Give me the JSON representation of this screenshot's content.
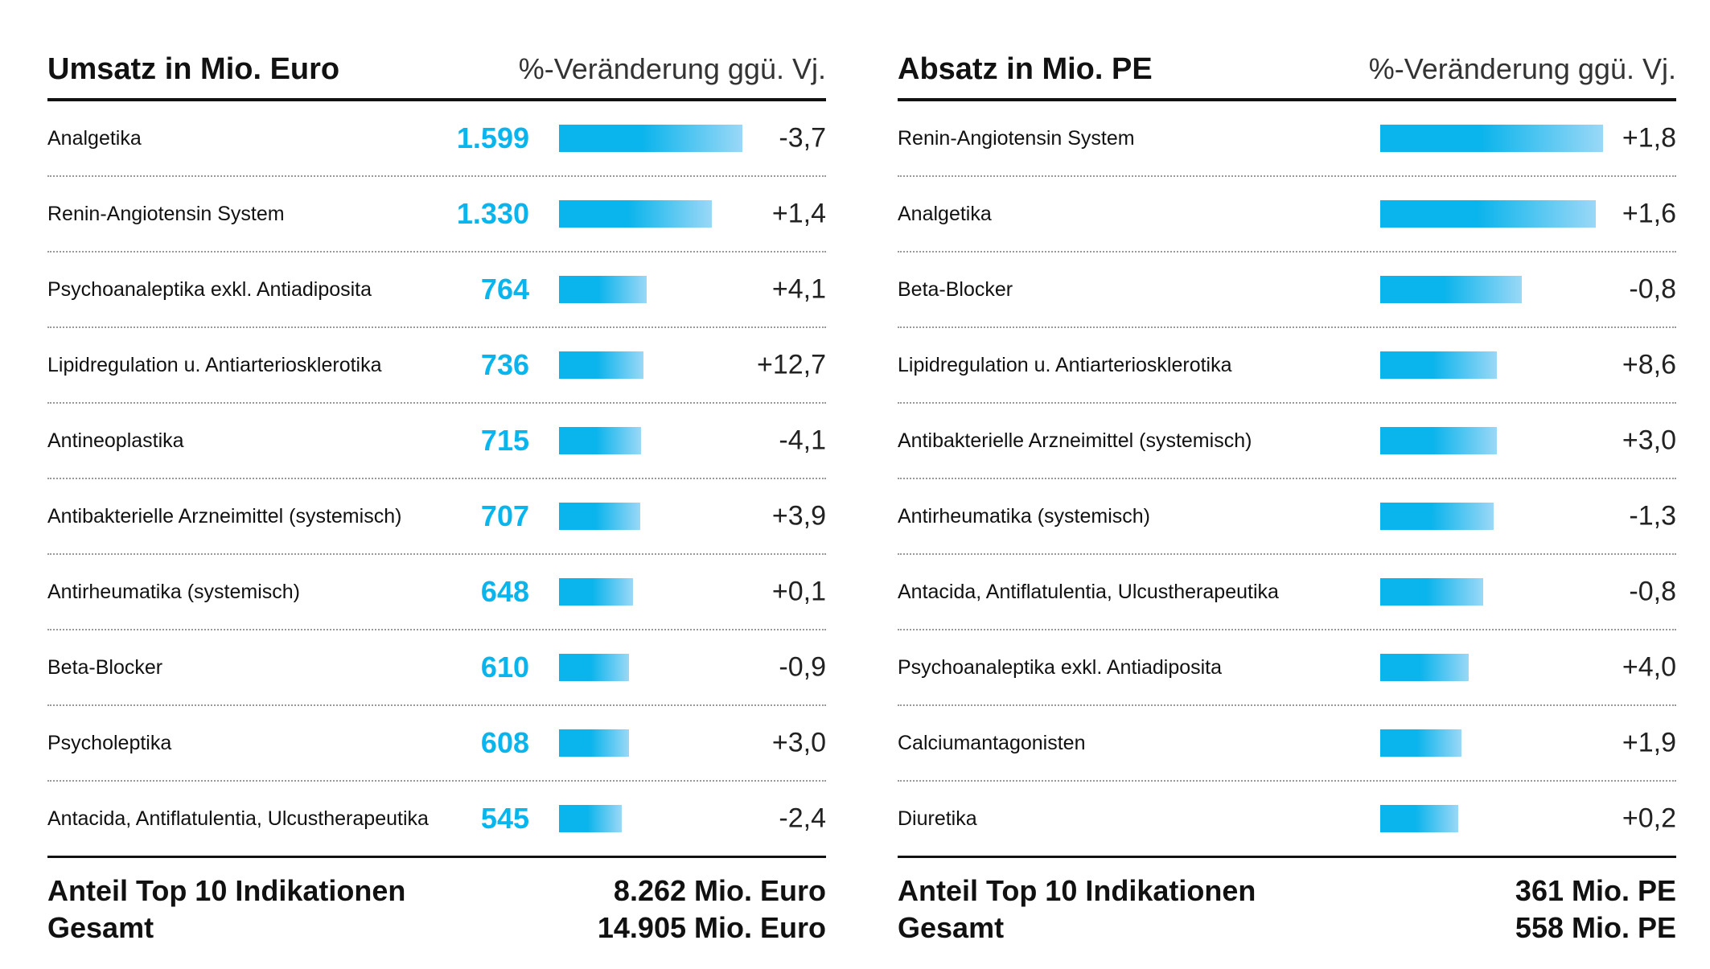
{
  "colors": {
    "accent": "#0ab4ec",
    "bar_start": "#0ab4ec",
    "bar_end": "#9ad8f7"
  },
  "chart_data": [
    {
      "type": "bar",
      "title": "Umsatz in Mio. Euro",
      "subtitle": "%-Veränderung ggü. Vj.",
      "categories": [
        "Analgetika",
        "Renin-Angiotensin System",
        "Psychoanaleptika exkl. Antiadiposita",
        "Lipidregulation u. Antiarteriosklerotika",
        "Antineoplastika",
        "Antibakterielle Arzneimittel (systemisch)",
        "Antirheumatika (systemisch)",
        "Beta-Blocker",
        "Psycholeptika",
        "Antacida, Antiflatulentia, Ulcustherapeutika"
      ],
      "values": [
        1599,
        1330,
        764,
        736,
        715,
        707,
        648,
        610,
        608,
        545
      ],
      "value_labels": [
        "1.599",
        "1.330",
        "764",
        "736",
        "715",
        "707",
        "648",
        "610",
        "608",
        "545"
      ],
      "changes": [
        "-3,7",
        "+1,4",
        "+4,1",
        "+12,7",
        "-4,1",
        "+3,9",
        "+0,1",
        "-0,9",
        "+3,0",
        "-2,4"
      ],
      "xlim": [
        0,
        1599
      ],
      "footer": [
        {
          "label": "Anteil Top 10 Indikationen",
          "value": "8.262 Mio. Euro"
        },
        {
          "label": "Gesamt",
          "value": "14.905 Mio. Euro"
        }
      ]
    },
    {
      "type": "bar",
      "title": "Absatz in Mio. PE",
      "subtitle": "%-Veränderung ggü. Vj.",
      "categories": [
        "Renin-Angiotensin System",
        "Analgetika",
        "Beta-Blocker",
        "Lipidregulation u. Antiarteriosklerotika",
        "Antibakterielle Arzneimittel (systemisch)",
        "Antirheumatika (systemisch)",
        "Antacida, Antiflatulentia, Ulcustherapeutika",
        "Psychoanaleptika exkl. Antiadiposita",
        "Calciumantagonisten",
        "Diuretika"
      ],
      "values": [
        63,
        61,
        40,
        33,
        33,
        32,
        29,
        25,
        23,
        22
      ],
      "value_labels": [
        "63",
        "61",
        "40",
        "33",
        "33",
        "32",
        "29",
        "25",
        "23",
        "22"
      ],
      "changes": [
        "+1,8",
        "+1,6",
        "-0,8",
        "+8,6",
        "+3,0",
        "-1,3",
        "-0,8",
        "+4,0",
        "+1,9",
        "+0,2"
      ],
      "xlim": [
        0,
        63
      ],
      "footer": [
        {
          "label": "Anteil Top 10 Indikationen",
          "value": "361 Mio. PE"
        },
        {
          "label": "Gesamt",
          "value": "558 Mio. PE"
        }
      ]
    }
  ]
}
